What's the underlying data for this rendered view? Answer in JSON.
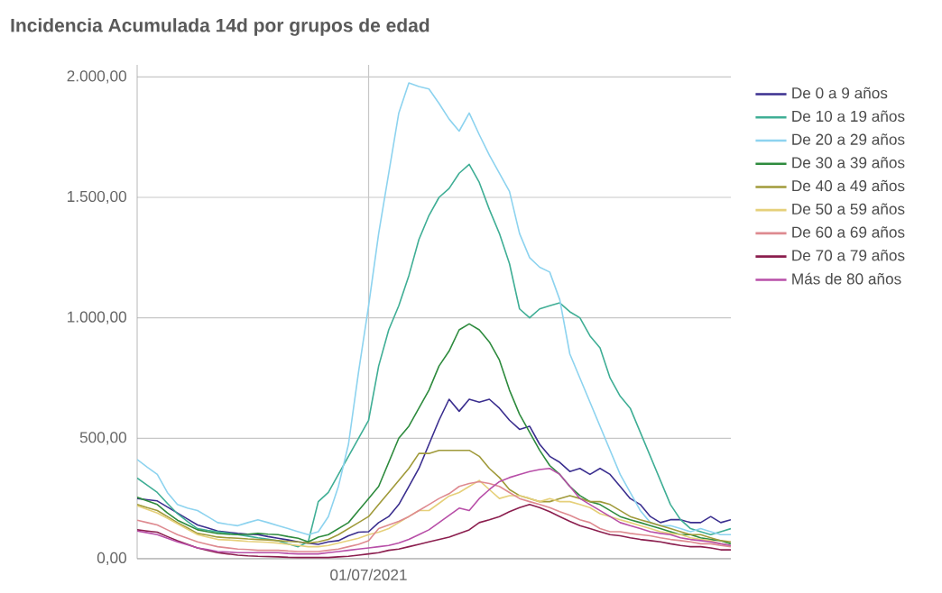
{
  "chart_data": {
    "type": "line",
    "title": "Incidencia Acumulada 14d por grupos de edad",
    "categories": [
      null,
      null,
      null,
      null,
      null,
      null,
      null,
      null,
      null,
      null,
      null,
      null,
      null,
      null,
      null,
      null,
      null,
      null,
      null,
      null,
      null,
      null,
      null,
      "01/07/2021",
      null,
      null,
      null,
      null,
      null,
      null,
      null,
      null,
      null,
      null,
      null,
      null,
      null,
      null,
      null,
      null,
      null,
      null,
      null,
      null,
      null,
      null,
      null,
      null,
      null,
      null,
      null,
      null,
      null,
      null,
      null,
      null,
      null,
      null,
      null,
      null
    ],
    "ylim": [
      0,
      2050
    ],
    "yticks": [
      {
        "value": 0,
        "label": "0,00"
      },
      {
        "value": 500,
        "label": "500,00"
      },
      {
        "value": 1000,
        "label": "1.000,00"
      },
      {
        "value": 1500,
        "label": "1.500,00"
      },
      {
        "value": 2000,
        "label": "2.000,00"
      }
    ],
    "grid": true,
    "legend": "right",
    "series": [
      {
        "name": "De 0 a 9 años",
        "color": "#3b2f8f",
        "values": [
          250,
          245,
          240,
          215,
          190,
          165,
          140,
          128,
          115,
          110,
          105,
          102,
          100,
          92,
          85,
          78,
          70,
          65,
          60,
          70,
          75,
          95,
          110,
          112,
          150,
          175,
          225,
          300,
          375,
          475,
          575,
          662,
          612,
          662,
          650,
          662,
          625,
          575,
          537,
          550,
          475,
          425,
          400,
          362,
          375,
          350,
          375,
          350,
          300,
          250,
          225,
          175,
          150,
          162,
          162,
          150,
          150,
          175,
          150,
          162
        ]
      },
      {
        "name": "De 10 a 19 años",
        "color": "#3fae95",
        "values": [
          335,
          305,
          275,
          230,
          187,
          155,
          125,
          118,
          112,
          106,
          100,
          94,
          87,
          81,
          75,
          62,
          50,
          70,
          237,
          275,
          350,
          425,
          500,
          575,
          800,
          950,
          1050,
          1175,
          1325,
          1425,
          1500,
          1537,
          1600,
          1637,
          1562,
          1450,
          1350,
          1225,
          1037,
          1000,
          1037,
          1050,
          1062,
          1025,
          1000,
          925,
          875,
          750,
          675,
          625,
          525,
          425,
          325,
          225,
          162,
          125,
          112,
          100,
          112,
          125
        ]
      },
      {
        "name": "De 20 a 29 años",
        "color": "#8dd3ef",
        "values": [
          412,
          380,
          350,
          275,
          225,
          210,
          200,
          175,
          150,
          143,
          137,
          150,
          162,
          150,
          137,
          125,
          112,
          100,
          112,
          175,
          300,
          475,
          775,
          1050,
          1350,
          1600,
          1850,
          1975,
          1960,
          1950,
          1890,
          1825,
          1775,
          1850,
          1760,
          1675,
          1600,
          1525,
          1350,
          1250,
          1210,
          1190,
          1075,
          850,
          750,
          650,
          550,
          450,
          350,
          275,
          200,
          150,
          137,
          137,
          125,
          112,
          125,
          112,
          100,
          100
        ]
      },
      {
        "name": "De 30 a 39 años",
        "color": "#2e8b3e",
        "values": [
          255,
          240,
          225,
          190,
          160,
          140,
          120,
          112,
          105,
          102,
          100,
          102,
          105,
          102,
          100,
          92,
          85,
          70,
          90,
          100,
          125,
          150,
          200,
          250,
          300,
          400,
          500,
          550,
          625,
          700,
          800,
          862,
          950,
          975,
          950,
          900,
          825,
          700,
          600,
          525,
          450,
          387,
          350,
          300,
          262,
          237,
          225,
          200,
          175,
          162,
          150,
          137,
          125,
          112,
          100,
          100,
          87,
          80,
          75,
          62
        ]
      },
      {
        "name": "De 40 a 49 años",
        "color": "#a09a3a",
        "values": [
          225,
          212,
          200,
          175,
          150,
          128,
          105,
          98,
          90,
          87,
          85,
          82,
          80,
          78,
          75,
          72,
          70,
          65,
          70,
          80,
          100,
          125,
          150,
          175,
          225,
          275,
          325,
          375,
          437,
          437,
          450,
          450,
          450,
          450,
          425,
          375,
          337,
          287,
          262,
          250,
          237,
          237,
          250,
          262,
          250,
          237,
          237,
          225,
          200,
          175,
          162,
          150,
          137,
          125,
          112,
          100,
          100,
          87,
          75,
          70
        ]
      },
      {
        "name": "De 50 a 59 años",
        "color": "#e6d07a",
        "values": [
          220,
          205,
          190,
          168,
          145,
          122,
          100,
          90,
          80,
          78,
          75,
          72,
          70,
          68,
          65,
          60,
          55,
          50,
          50,
          55,
          65,
          75,
          85,
          100,
          110,
          125,
          150,
          175,
          200,
          200,
          230,
          260,
          275,
          300,
          325,
          287,
          250,
          262,
          262,
          250,
          237,
          250,
          237,
          237,
          225,
          212,
          187,
          175,
          162,
          150,
          137,
          125,
          112,
          105,
          100,
          87,
          80,
          75,
          62,
          55
        ]
      },
      {
        "name": "De 60 a 69 años",
        "color": "#de8a90",
        "values": [
          160,
          150,
          140,
          120,
          100,
          85,
          70,
          60,
          50,
          45,
          40,
          38,
          35,
          35,
          35,
          32,
          30,
          30,
          30,
          35,
          40,
          50,
          60,
          75,
          125,
          140,
          155,
          175,
          200,
          225,
          250,
          270,
          300,
          312,
          320,
          312,
          300,
          275,
          250,
          237,
          225,
          212,
          195,
          180,
          162,
          150,
          125,
          112,
          112,
          105,
          100,
          95,
          87,
          80,
          75,
          70,
          62,
          62,
          55,
          50
        ]
      },
      {
        "name": "De 70 a 79 años",
        "color": "#8b1e4e",
        "values": [
          120,
          115,
          110,
          92,
          75,
          60,
          45,
          35,
          25,
          20,
          15,
          12,
          10,
          9,
          8,
          6,
          5,
          5,
          5,
          5,
          8,
          10,
          15,
          20,
          25,
          35,
          40,
          50,
          60,
          70,
          80,
          90,
          105,
          120,
          150,
          162,
          175,
          195,
          212,
          225,
          212,
          195,
          175,
          155,
          137,
          125,
          112,
          100,
          95,
          87,
          80,
          75,
          70,
          62,
          55,
          50,
          50,
          45,
          37,
          37
        ]
      },
      {
        "name": "Más de 80 años",
        "color": "#b84fa8",
        "values": [
          115,
          108,
          100,
          85,
          70,
          58,
          45,
          38,
          30,
          28,
          25,
          25,
          25,
          25,
          25,
          22,
          20,
          20,
          20,
          25,
          30,
          35,
          40,
          45,
          50,
          55,
          65,
          80,
          100,
          120,
          150,
          180,
          210,
          200,
          250,
          287,
          320,
          337,
          350,
          362,
          370,
          375,
          350,
          300,
          250,
          225,
          200,
          175,
          150,
          137,
          125,
          112,
          105,
          100,
          87,
          80,
          75,
          70,
          62,
          55
        ]
      }
    ]
  }
}
